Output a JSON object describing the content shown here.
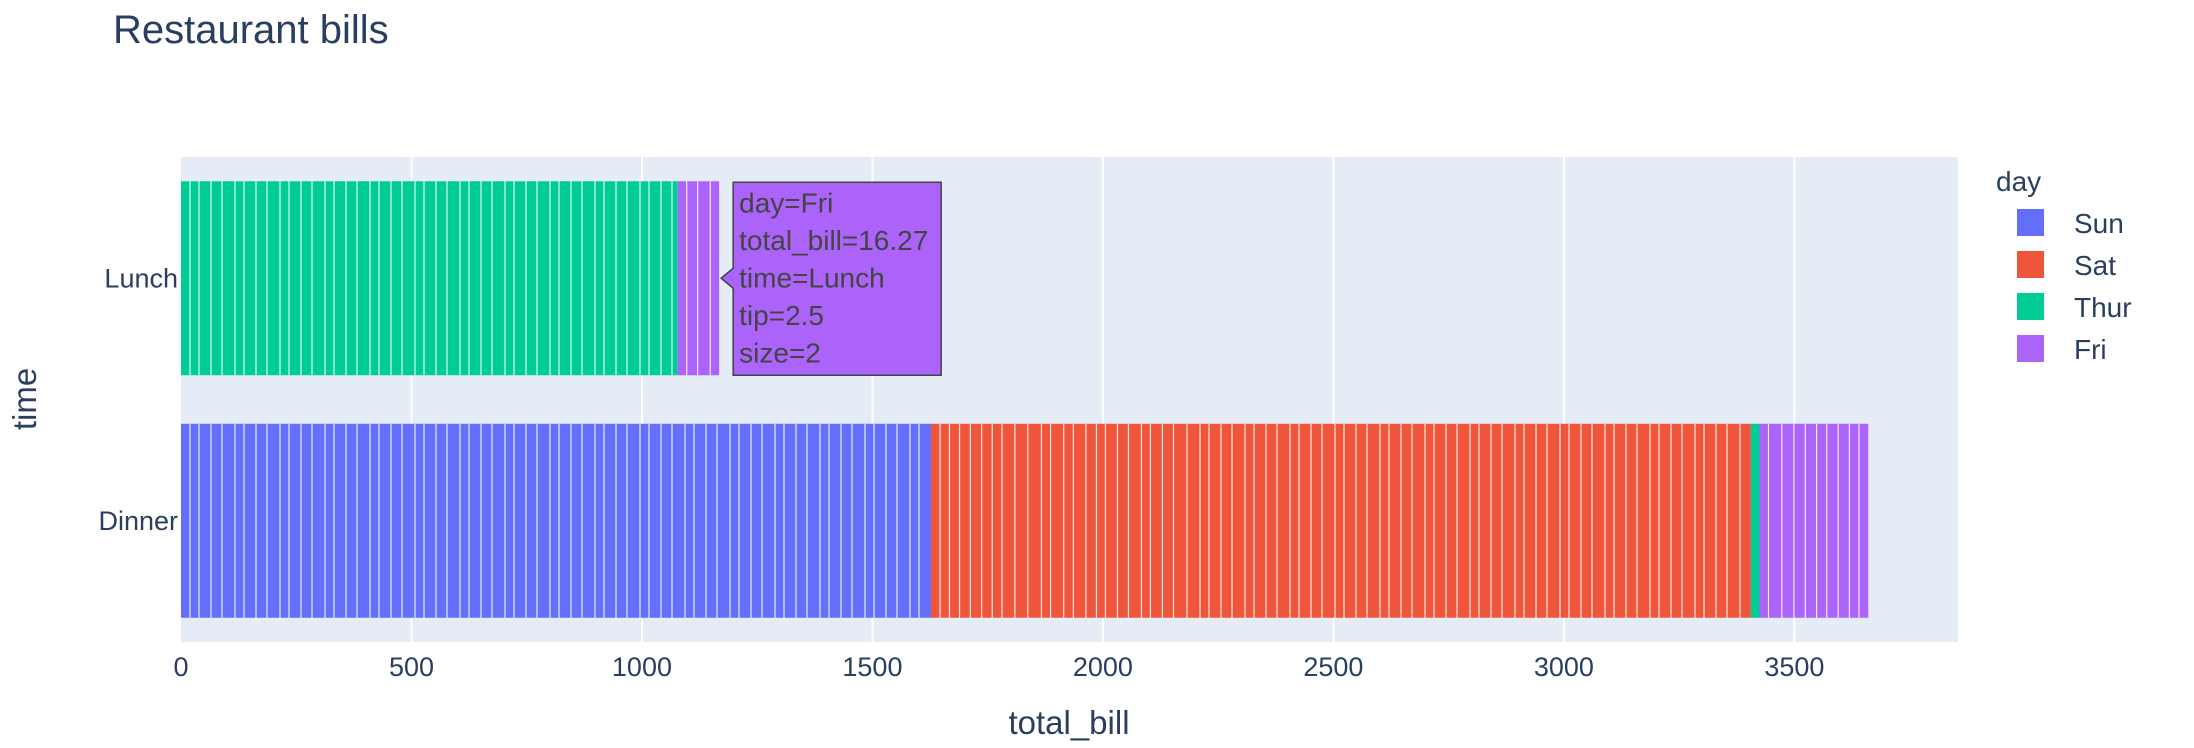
{
  "chart_data": {
    "type": "bar",
    "orientation": "horizontal",
    "stacked": true,
    "title": "Restaurant bills",
    "xlabel": "total_bill",
    "ylabel": "time",
    "xlim": [
      0,
      3855
    ],
    "xticks": [
      0,
      500,
      1000,
      1500,
      2000,
      2500,
      3000,
      3500
    ],
    "categories": [
      "Dinner",
      "Lunch"
    ],
    "series": [
      {
        "name": "Sun",
        "color": "#636efa",
        "values": [
          1627.16,
          0
        ]
      },
      {
        "name": "Sat",
        "color": "#EF553B",
        "values": [
          1778.4,
          0
        ]
      },
      {
        "name": "Thur",
        "color": "#00cc96",
        "values": [
          18.78,
          1077.55
        ]
      },
      {
        "name": "Fri",
        "color": "#ab63fa",
        "values": [
          235.96,
          89.92
        ]
      }
    ],
    "legend": {
      "title": "day",
      "placement": "right"
    },
    "grid": true
  },
  "hover": {
    "lines": [
      "day=Fri",
      "total_bill=16.27",
      "time=Lunch",
      "tip=2.5",
      "size=2"
    ]
  }
}
